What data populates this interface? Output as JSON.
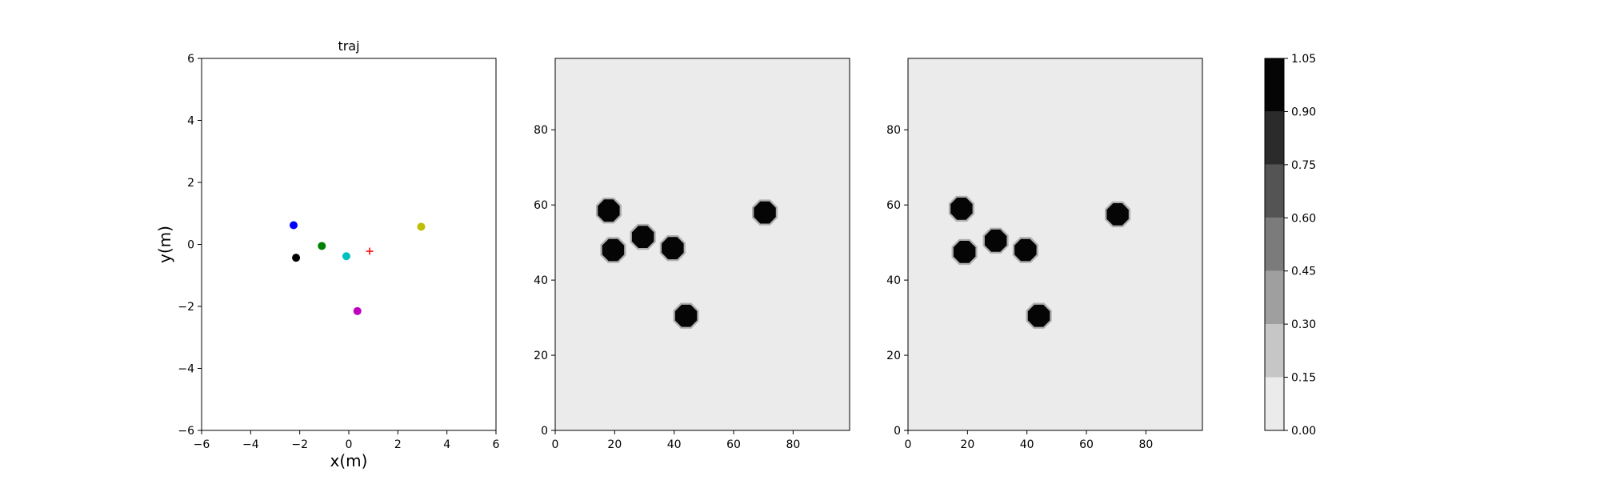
{
  "chart_data": [
    {
      "type": "scatter",
      "title": "traj",
      "xlabel": "x(m)",
      "ylabel": "y(m)",
      "xlim": [
        -6,
        6
      ],
      "ylim": [
        -6,
        6
      ],
      "xticks": [
        "−6",
        "−4",
        "−2",
        "0",
        "2",
        "4",
        "6"
      ],
      "yticks": [
        "−6",
        "−4",
        "−2",
        "0",
        "2",
        "4",
        "6"
      ],
      "grid": false,
      "points": [
        {
          "x": -2.25,
          "y": 0.62,
          "color": "#0000ff",
          "marker": "circle"
        },
        {
          "x": -2.15,
          "y": -0.43,
          "color": "#000000",
          "marker": "circle"
        },
        {
          "x": -1.1,
          "y": -0.05,
          "color": "#008000",
          "marker": "circle"
        },
        {
          "x": -0.1,
          "y": -0.38,
          "color": "#00bfbf",
          "marker": "circle"
        },
        {
          "x": 2.95,
          "y": 0.57,
          "color": "#bfbf00",
          "marker": "circle"
        },
        {
          "x": 0.35,
          "y": -2.15,
          "color": "#bf00bf",
          "marker": "circle"
        },
        {
          "x": 0.85,
          "y": -0.22,
          "color": "#ff0000",
          "marker": "plus"
        }
      ]
    },
    {
      "type": "heatmap",
      "title": "",
      "xlim": [
        0,
        99
      ],
      "ylim": [
        0,
        99
      ],
      "xticks": [
        "0",
        "20",
        "40",
        "60",
        "80"
      ],
      "yticks": [
        "0",
        "20",
        "40",
        "60",
        "80"
      ],
      "background_value": 0.07,
      "blobs": [
        {
          "x": 18,
          "y": 58.5,
          "value": 1.0
        },
        {
          "x": 19.5,
          "y": 48,
          "value": 1.0
        },
        {
          "x": 29.5,
          "y": 51.5,
          "value": 1.0
        },
        {
          "x": 39.5,
          "y": 48.5,
          "value": 1.0
        },
        {
          "x": 44,
          "y": 30.5,
          "value": 1.0
        },
        {
          "x": 70.5,
          "y": 58,
          "value": 1.0
        }
      ]
    },
    {
      "type": "heatmap",
      "title": "",
      "xlim": [
        0,
        99
      ],
      "ylim": [
        0,
        99
      ],
      "xticks": [
        "0",
        "20",
        "40",
        "60",
        "80"
      ],
      "yticks": [
        "0",
        "20",
        "40",
        "60",
        "80"
      ],
      "background_value": 0.07,
      "blobs": [
        {
          "x": 18,
          "y": 59,
          "value": 1.0
        },
        {
          "x": 19,
          "y": 47.5,
          "value": 1.0
        },
        {
          "x": 29.5,
          "y": 50.5,
          "value": 1.0
        },
        {
          "x": 39.5,
          "y": 48,
          "value": 1.0
        },
        {
          "x": 44,
          "y": 30.5,
          "value": 1.0
        },
        {
          "x": 70.5,
          "y": 57.5,
          "value": 1.0
        }
      ]
    }
  ],
  "colorbar": {
    "levels": [
      0.0,
      0.15,
      0.3,
      0.45,
      0.6,
      0.75,
      0.9,
      1.05
    ],
    "labels": [
      "0.00",
      "0.15",
      "0.30",
      "0.45",
      "0.60",
      "0.75",
      "0.90",
      "1.05"
    ],
    "colors": [
      "#ebebeb",
      "#c6c6c6",
      "#9f9f9f",
      "#7b7b7b",
      "#545454",
      "#2b2b2b",
      "#050505"
    ]
  }
}
